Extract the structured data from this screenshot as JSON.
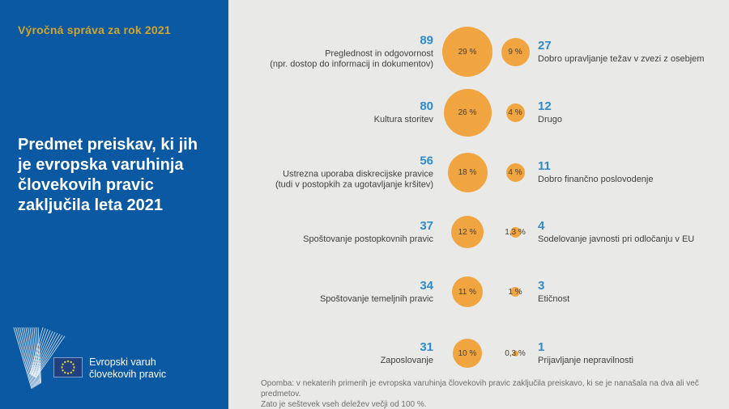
{
  "left_panel": {
    "kicker": "Výročná správa za rok 2021",
    "title": "Predmet preiskav, ki jih\nje evropska varuhinja\nčlovekovih pravic\nzaključila leta 2021",
    "logo_text": "Evropski varuh\nčlovekovih pravic"
  },
  "chart_data": {
    "type": "bubble",
    "title": "Predmet preiskav, ki jih je evropska varuhinja človekovih pravic zaključila leta 2021",
    "unit": "%",
    "legend_position": "none",
    "rows": [
      {
        "left": {
          "value": 89,
          "label": "Preglednost in odgovornost\n(npr. dostop do informacij in dokumentov)",
          "pct": 29,
          "pct_label": "29 %"
        },
        "right": {
          "value": 27,
          "label": "Dobro upravljanje težav v zvezi z osebjem",
          "pct": 9,
          "pct_label": "9 %"
        }
      },
      {
        "left": {
          "value": 80,
          "label": "Kultura storitev",
          "pct": 26,
          "pct_label": "26 %"
        },
        "right": {
          "value": 12,
          "label": "Drugo",
          "pct": 4,
          "pct_label": "4 %"
        }
      },
      {
        "left": {
          "value": 56,
          "label": "Ustrezna uporaba diskrecijske pravice\n(tudi v postopkih za ugotavljanje kršitev)",
          "pct": 18,
          "pct_label": "18 %"
        },
        "right": {
          "value": 11,
          "label": "Dobro finančno poslovodenje",
          "pct": 4,
          "pct_label": "4 %"
        }
      },
      {
        "left": {
          "value": 37,
          "label": "Spoštovanje postopkovnih pravic",
          "pct": 12,
          "pct_label": "12 %"
        },
        "right": {
          "value": 4,
          "label": "Sodelovanje javnosti pri odločanju v EU",
          "pct": 1.3,
          "pct_label": "1,3 %"
        }
      },
      {
        "left": {
          "value": 34,
          "label": "Spoštovanje temeljnih pravic",
          "pct": 11,
          "pct_label": "11 %"
        },
        "right": {
          "value": 3,
          "label": "Etičnost",
          "pct": 1,
          "pct_label": "1 %"
        }
      },
      {
        "left": {
          "value": 31,
          "label": "Zaposlovanje",
          "pct": 10,
          "pct_label": "10 %"
        },
        "right": {
          "value": 1,
          "label": "Prijavljanje nepravilnosti",
          "pct": 0.3,
          "pct_label": "0,3 %"
        }
      }
    ],
    "note": "Opomba: v nekaterih primerih je evropska varuhinja človekovih pravic zaključila preiskavo, ki se je nanašala na dva ali več predmetov.\nZato je seštevek vseh deležev večji od 100 %."
  },
  "colors": {
    "panel_blue": "#0b58a3",
    "accent_gold": "#d2a62e",
    "number_blue": "#2e8bc8",
    "bubble_orange": "#f0a540",
    "background_gray": "#e9e9e8",
    "flag_navy": "#21407f",
    "flag_star_yellow": "#ddd23d"
  }
}
